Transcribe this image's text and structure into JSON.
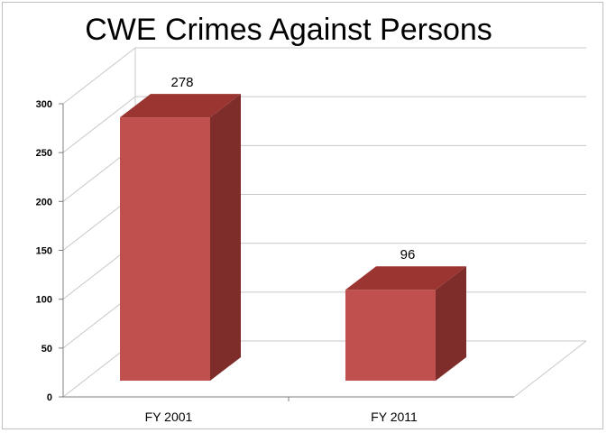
{
  "chart_data": {
    "type": "bar",
    "title": "CWE Crimes Against Persons",
    "categories": [
      "FY 2001",
      "FY 2011"
    ],
    "values": [
      278,
      96
    ],
    "data_labels": [
      "278",
      "96"
    ],
    "xlabel": "",
    "ylabel": "",
    "ylim": [
      0,
      300
    ],
    "yticks": [
      "0",
      "50",
      "100",
      "150",
      "200",
      "250",
      "300"
    ],
    "grid": true,
    "legend": "none",
    "style": "3d-column",
    "colors": {
      "bar_front": "#c0504d",
      "bar_top": "#9b3532",
      "bar_side": "#7f2d2b",
      "grid": "#c8c8c8"
    }
  }
}
